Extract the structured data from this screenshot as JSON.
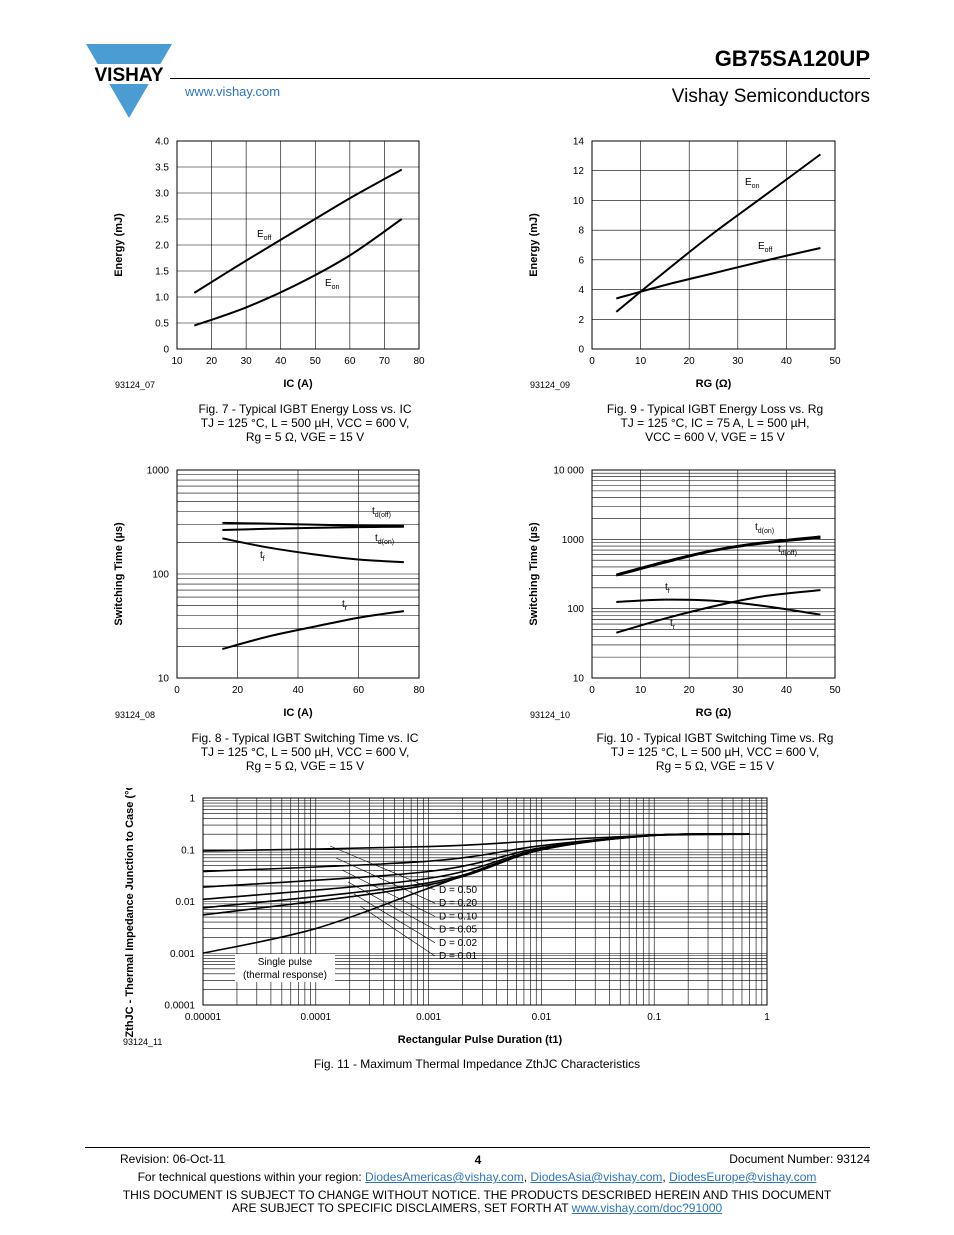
{
  "header": {
    "part_number": "GB75SA120UP",
    "company": "Vishay Semiconductors",
    "website": "www.vishay.com",
    "logo_text": "VISHAY",
    "brand_color": "#2E75B6",
    "logo_triangle_color": "#4B9CD3"
  },
  "figures": {
    "fig7": {
      "id": "93124_07",
      "caption": [
        "Fig. 7 - Typical IGBT Energy Loss vs. IC",
        "TJ = 125 °C, L = 500 µH, VCC = 600 V,",
        "Rg = 5 Ω, VGE = 15 V"
      ]
    },
    "fig8": {
      "id": "93124_08",
      "caption": [
        "Fig. 8 - Typical IGBT Switching Time vs. IC",
        "TJ = 125 °C, L = 500 µH, VCC = 600 V,",
        "Rg = 5 Ω, VGE = 15 V"
      ]
    },
    "fig9": {
      "id": "93124_09",
      "caption": [
        "Fig. 9 - Typical IGBT Energy Loss vs. Rg",
        "TJ = 125 °C, IC = 75 A, L = 500 µH,",
        "VCC = 600 V, VGE = 15 V"
      ]
    },
    "fig10": {
      "id": "93124_10",
      "caption": [
        "Fig. 10 - Typical IGBT Switching Time vs. Rg",
        "TJ = 125 °C, L = 500 µH, VCC = 600 V,",
        "Rg = 5 Ω, VGE = 15 V"
      ]
    },
    "fig11": {
      "id": "93124_11",
      "caption": [
        "Fig. 11 - Maximum Thermal Impedance ZthJC Characteristics"
      ]
    }
  },
  "chart_data": [
    {
      "type": "line",
      "title": "",
      "xlabel": "IC (A)",
      "ylabel": "Energy (mJ)",
      "xlim": [
        10,
        80
      ],
      "ylim": [
        0,
        4.0
      ],
      "xticks": [
        "10",
        "20",
        "30",
        "40",
        "50",
        "60",
        "70",
        "80"
      ],
      "yticks": [
        "0",
        "0.5",
        "1.0",
        "1.5",
        "2.0",
        "2.5",
        "3.0",
        "3.5",
        "4.0"
      ],
      "grid": true,
      "series": [
        {
          "name": "Eoff",
          "x": [
            15,
            30,
            45,
            60,
            75
          ],
          "y": [
            1.08,
            1.7,
            2.3,
            2.9,
            3.45
          ]
        },
        {
          "name": "Eon",
          "x": [
            15,
            30,
            45,
            60,
            75
          ],
          "y": [
            0.45,
            0.8,
            1.25,
            1.8,
            2.5
          ]
        }
      ]
    },
    {
      "type": "line",
      "title": "",
      "xlabel": "IC (A)",
      "ylabel": "Switching Time (µs)",
      "xlim": [
        0,
        80
      ],
      "ylim": [
        10,
        1000
      ],
      "yscale": "log",
      "xticks": [
        "0",
        "20",
        "40",
        "60",
        "80"
      ],
      "yticks": [
        "10",
        "100",
        "1000"
      ],
      "grid": true,
      "series": [
        {
          "name": "td(off)",
          "x": [
            15,
            30,
            45,
            60,
            75
          ],
          "y": [
            310,
            305,
            298,
            292,
            290
          ]
        },
        {
          "name": "td(on)",
          "x": [
            15,
            30,
            45,
            60,
            75
          ],
          "y": [
            265,
            272,
            278,
            282,
            285
          ]
        },
        {
          "name": "tf",
          "x": [
            15,
            30,
            45,
            60,
            75
          ],
          "y": [
            220,
            180,
            155,
            138,
            130
          ]
        },
        {
          "name": "tr",
          "x": [
            15,
            30,
            45,
            60,
            75
          ],
          "y": [
            19,
            25,
            31,
            38,
            44
          ]
        }
      ]
    },
    {
      "type": "line",
      "title": "",
      "xlabel": "RG (Ω)",
      "ylabel": "Energy (mJ)",
      "xlim": [
        0,
        50
      ],
      "ylim": [
        0,
        14
      ],
      "xticks": [
        "0",
        "10",
        "20",
        "30",
        "40",
        "50"
      ],
      "yticks": [
        "0",
        "2",
        "4",
        "6",
        "8",
        "10",
        "12",
        "14"
      ],
      "grid": true,
      "series": [
        {
          "name": "Eon",
          "x": [
            5,
            15,
            25,
            35,
            47
          ],
          "y": [
            2.5,
            5.2,
            7.8,
            10.2,
            13.1
          ]
        },
        {
          "name": "Eoff",
          "x": [
            5,
            15,
            25,
            35,
            47
          ],
          "y": [
            3.4,
            4.3,
            5.1,
            5.9,
            6.8
          ]
        }
      ]
    },
    {
      "type": "line",
      "title": "",
      "xlabel": "RG (Ω)",
      "ylabel": "Switching Time (µs)",
      "xlim": [
        0,
        50
      ],
      "ylim": [
        10,
        10000
      ],
      "yscale": "log",
      "xticks": [
        "0",
        "10",
        "20",
        "30",
        "40",
        "50"
      ],
      "yticks": [
        "10",
        "100",
        "1000",
        "10 000"
      ],
      "grid": true,
      "series": [
        {
          "name": "td(on)",
          "x": [
            5,
            15,
            25,
            35,
            47
          ],
          "y": [
            310,
            480,
            700,
            900,
            1100
          ]
        },
        {
          "name": "td(off)",
          "x": [
            5,
            15,
            25,
            35,
            47
          ],
          "y": [
            300,
            460,
            680,
            870,
            1050
          ]
        },
        {
          "name": "tf",
          "x": [
            5,
            15,
            25,
            35,
            47
          ],
          "y": [
            125,
            135,
            130,
            110,
            82
          ]
        },
        {
          "name": "tr",
          "x": [
            5,
            15,
            25,
            35,
            47
          ],
          "y": [
            45,
            72,
            108,
            150,
            185
          ]
        }
      ]
    },
    {
      "type": "line",
      "title": "",
      "xlabel": "Rectangular Pulse Duration (t1)",
      "ylabel": "ZthJC - Thermal Impedance Junction to Case (°C/W)",
      "xlim": [
        1e-05,
        1
      ],
      "ylim": [
        0.0001,
        1
      ],
      "xscale": "log",
      "yscale": "log",
      "xticks": [
        "0.00001",
        "0.0001",
        "0.001",
        "0.01",
        "0.1",
        "1"
      ],
      "yticks": [
        "0.0001",
        "0.001",
        "0.01",
        "0.1",
        "1"
      ],
      "grid": true,
      "legend": [
        "D = 0.50",
        "D = 0.20",
        "D = 0.10",
        "D = 0.05",
        "D = 0.02",
        "D = 0.01"
      ],
      "annotation": [
        "Single pulse",
        "(thermal response)"
      ],
      "series": [
        {
          "name": "D = 0.50",
          "x": [
            1e-05,
            0.001,
            0.01,
            0.1,
            0.7
          ],
          "y": [
            0.095,
            0.115,
            0.15,
            0.19,
            0.2
          ]
        },
        {
          "name": "D = 0.20",
          "x": [
            1e-05,
            0.001,
            0.01,
            0.1,
            0.7
          ],
          "y": [
            0.038,
            0.06,
            0.12,
            0.19,
            0.2
          ]
        },
        {
          "name": "D = 0.10",
          "x": [
            1e-05,
            0.001,
            0.01,
            0.1,
            0.7
          ],
          "y": [
            0.019,
            0.038,
            0.11,
            0.19,
            0.2
          ]
        },
        {
          "name": "D = 0.05",
          "x": [
            1e-05,
            0.001,
            0.01,
            0.1,
            0.7
          ],
          "y": [
            0.011,
            0.028,
            0.105,
            0.19,
            0.2
          ]
        },
        {
          "name": "D = 0.02",
          "x": [
            1e-05,
            0.001,
            0.01,
            0.1,
            0.7
          ],
          "y": [
            0.0075,
            0.023,
            0.1,
            0.19,
            0.2
          ]
        },
        {
          "name": "D = 0.01",
          "x": [
            1e-05,
            0.001,
            0.01,
            0.1,
            0.7
          ],
          "y": [
            0.0055,
            0.021,
            0.1,
            0.19,
            0.2
          ]
        },
        {
          "name": "Single pulse",
          "x": [
            1e-05,
            0.0001,
            0.001,
            0.01,
            0.1,
            0.7
          ],
          "y": [
            0.001,
            0.003,
            0.018,
            0.1,
            0.19,
            0.2
          ]
        }
      ]
    }
  ],
  "footer": {
    "revision": "Revision: 06-Oct-11",
    "page": "4",
    "document_number": "Document Number: 93124",
    "contact_prefix": "For technical questions within your region: ",
    "email_americas": "DiodesAmericas@vishay.com",
    "email_asia": "DiodesAsia@vishay.com",
    "email_europe": "DiodesEurope@vishay.com",
    "disclaimer_line1": "THIS DOCUMENT IS SUBJECT TO CHANGE WITHOUT NOTICE. THE PRODUCTS DESCRIBED HEREIN AND THIS DOCUMENT",
    "disclaimer_line2_prefix": "ARE SUBJECT TO SPECIFIC DISCLAIMERS, SET FORTH AT ",
    "disclaimer_link": "www.vishay.com/doc?91000"
  }
}
